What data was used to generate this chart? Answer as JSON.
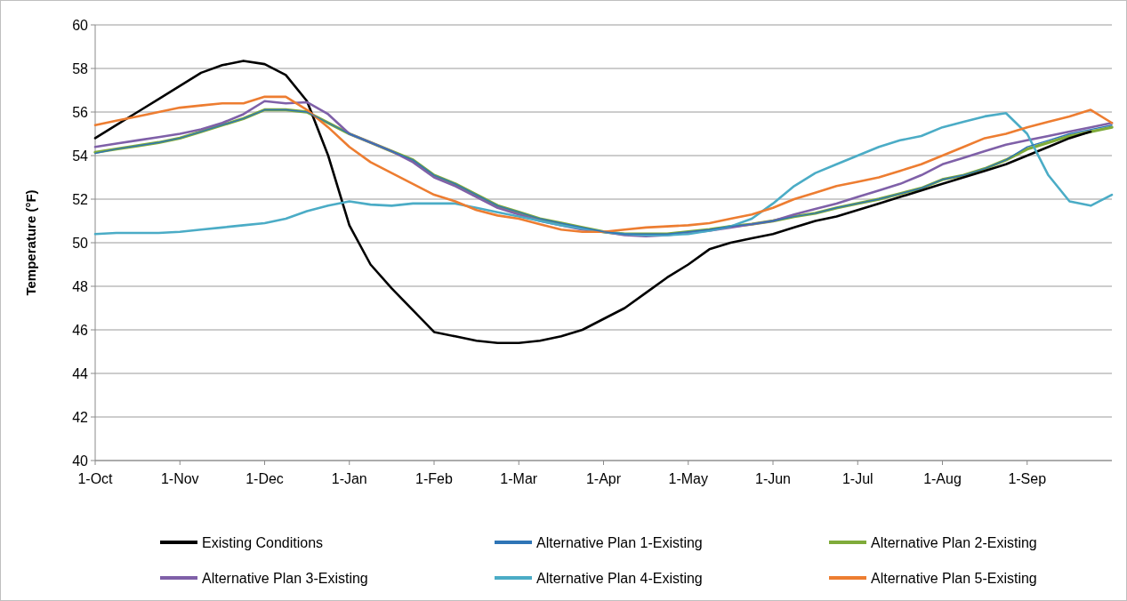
{
  "chart_data": {
    "type": "line",
    "ylabel": "Temperature (°F)",
    "ylim": [
      40,
      60
    ],
    "yticks": [
      40,
      42,
      44,
      46,
      48,
      50,
      52,
      54,
      56,
      58,
      60
    ],
    "categories": [
      "1-Oct",
      null,
      null,
      null,
      "1-Nov",
      null,
      null,
      null,
      "1-Dec",
      null,
      null,
      null,
      "1-Jan",
      null,
      null,
      null,
      "1-Feb",
      null,
      null,
      null,
      "1-Mar",
      null,
      null,
      null,
      "1-Apr",
      null,
      null,
      null,
      "1-May",
      null,
      null,
      null,
      "1-Jun",
      null,
      null,
      null,
      "1-Jul",
      null,
      null,
      null,
      "1-Aug",
      null,
      null,
      null,
      "1-Sep",
      null,
      null,
      null,
      null
    ],
    "grid": "y",
    "legend": "bottom",
    "marker": "none",
    "line_style": "solid",
    "series": [
      {
        "name": "Existing Conditions",
        "color": "#000000",
        "values": [
          54.8,
          55.4,
          56.0,
          56.6,
          57.2,
          57.8,
          58.15,
          58.35,
          58.2,
          57.7,
          56.5,
          54.0,
          50.8,
          49.0,
          47.9,
          46.9,
          45.9,
          45.7,
          45.5,
          45.4,
          45.4,
          45.5,
          45.7,
          46.0,
          46.5,
          47.0,
          47.7,
          48.4,
          49.0,
          49.7,
          50.0,
          50.2,
          50.4,
          50.7,
          51.0,
          51.2,
          51.5,
          51.8,
          52.1,
          52.4,
          52.7,
          53.0,
          53.3,
          53.6,
          54.0,
          54.4,
          54.8,
          55.1,
          null
        ]
      },
      {
        "name": "Alternative Plan 1-Existing",
        "color": "#2e75b6",
        "values": [
          54.1,
          54.3,
          54.45,
          54.6,
          54.8,
          55.1,
          55.4,
          55.7,
          56.1,
          56.1,
          56.0,
          55.5,
          55.0,
          54.6,
          54.2,
          53.8,
          53.1,
          52.7,
          52.2,
          51.7,
          51.4,
          51.1,
          50.9,
          50.7,
          50.5,
          50.4,
          50.4,
          50.4,
          50.5,
          50.6,
          50.75,
          50.85,
          51.0,
          51.2,
          51.35,
          51.6,
          51.8,
          52.0,
          52.25,
          52.5,
          52.9,
          53.1,
          53.4,
          53.8,
          54.4,
          54.7,
          55.0,
          55.2,
          55.4
        ]
      },
      {
        "name": "Alternative Plan 2-Existing",
        "color": "#7fab3a",
        "values": [
          54.15,
          54.3,
          54.45,
          54.6,
          54.8,
          55.1,
          55.4,
          55.7,
          56.1,
          56.1,
          56.0,
          55.5,
          55.0,
          54.6,
          54.2,
          53.8,
          53.1,
          52.7,
          52.2,
          51.7,
          51.4,
          51.1,
          50.9,
          50.7,
          50.5,
          50.4,
          50.4,
          50.4,
          50.5,
          50.6,
          50.75,
          50.85,
          51.0,
          51.2,
          51.35,
          51.6,
          51.8,
          52.0,
          52.25,
          52.5,
          52.9,
          53.1,
          53.4,
          53.8,
          54.3,
          54.6,
          54.9,
          55.1,
          55.3
        ]
      },
      {
        "name": "Alternative Plan 3-Existing",
        "color": "#7f60a8",
        "values": [
          54.4,
          54.55,
          54.7,
          54.85,
          55.0,
          55.2,
          55.5,
          55.9,
          56.5,
          56.4,
          56.45,
          55.9,
          55.0,
          54.6,
          54.2,
          53.7,
          53.0,
          52.6,
          52.1,
          51.6,
          51.3,
          51.0,
          50.8,
          50.6,
          50.5,
          50.35,
          50.3,
          50.35,
          50.45,
          50.55,
          50.7,
          50.85,
          51.0,
          51.3,
          51.55,
          51.8,
          52.1,
          52.4,
          52.7,
          53.1,
          53.6,
          53.9,
          54.2,
          54.5,
          54.7,
          54.9,
          55.1,
          55.3,
          55.5
        ]
      },
      {
        "name": "Alternative Plan 4-Existing",
        "color": "#4bacc6",
        "values": [
          50.4,
          50.45,
          50.45,
          50.45,
          50.5,
          50.6,
          50.7,
          50.8,
          50.9,
          51.1,
          51.45,
          51.7,
          51.9,
          51.75,
          51.7,
          51.8,
          51.8,
          51.8,
          51.6,
          51.4,
          51.2,
          51.0,
          50.8,
          50.65,
          50.5,
          50.4,
          50.35,
          50.35,
          50.4,
          50.55,
          50.75,
          51.1,
          51.8,
          52.6,
          53.2,
          53.6,
          54.0,
          54.4,
          54.7,
          54.9,
          55.3,
          55.55,
          55.8,
          55.95,
          55.0,
          53.1,
          51.9,
          51.7,
          52.2
        ]
      },
      {
        "name": "Alternative Plan 5-Existing",
        "color": "#ed7d31",
        "values": [
          55.4,
          55.6,
          55.8,
          56.0,
          56.2,
          56.3,
          56.4,
          56.4,
          56.7,
          56.7,
          56.1,
          55.3,
          54.4,
          53.7,
          53.2,
          52.7,
          52.2,
          51.9,
          51.5,
          51.25,
          51.1,
          50.85,
          50.6,
          50.5,
          50.5,
          50.6,
          50.7,
          50.75,
          50.8,
          50.9,
          51.1,
          51.3,
          51.6,
          52.0,
          52.3,
          52.6,
          52.8,
          53.0,
          53.3,
          53.6,
          54.0,
          54.4,
          54.8,
          55.0,
          55.3,
          55.55,
          55.8,
          56.1,
          55.5
        ]
      }
    ]
  }
}
